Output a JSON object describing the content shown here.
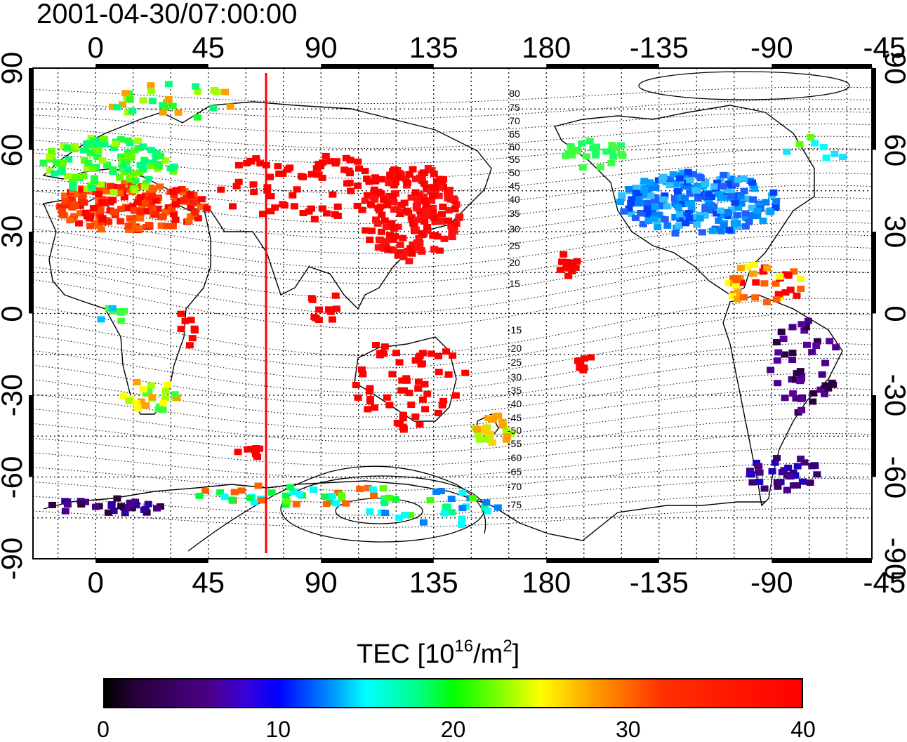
{
  "title": "2001-04-30/07:00:00",
  "map": {
    "lon_ticks_top": [
      "0",
      "45",
      "90",
      "135",
      "180",
      "-135",
      "-90",
      "-45"
    ],
    "lon_ticks_bottom": [
      "0",
      "45",
      "90",
      "135",
      "180",
      "-135",
      "-90",
      "-45"
    ],
    "lat_ticks_left": [
      "90",
      "60",
      "30",
      "0",
      "-30",
      "-60",
      "-90"
    ],
    "lat_ticks_right": [
      "90",
      "60",
      "30",
      "0",
      "-30",
      "-60",
      "-90"
    ],
    "lon_range": [
      -25,
      310
    ],
    "lat_range": [
      -90,
      90
    ],
    "grid": true,
    "meridian_marker_lon": 75,
    "meridian_marker_color": "#ff0000",
    "contour_labels_north": [
      "80",
      "75",
      "70",
      "65",
      "60",
      "55",
      "50",
      "45",
      "40",
      "35",
      "30",
      "25",
      "20",
      "15"
    ],
    "contour_labels_south": [
      "-15",
      "-20",
      "-25",
      "-30",
      "-35",
      "-40",
      "-45",
      "-50",
      "-55",
      "-60",
      "-65",
      "-70",
      "-75"
    ]
  },
  "colorbar": {
    "title_prefix": "TEC  [10",
    "title_exp1": "16",
    "title_mid": "/m",
    "title_exp2": "2",
    "title_suffix": "]",
    "ticks": [
      "0",
      "10",
      "20",
      "30",
      "40"
    ],
    "range": [
      0,
      40
    ],
    "colormap": "jet-like (black-purple-blue-cyan-green-yellow-red)"
  }
}
